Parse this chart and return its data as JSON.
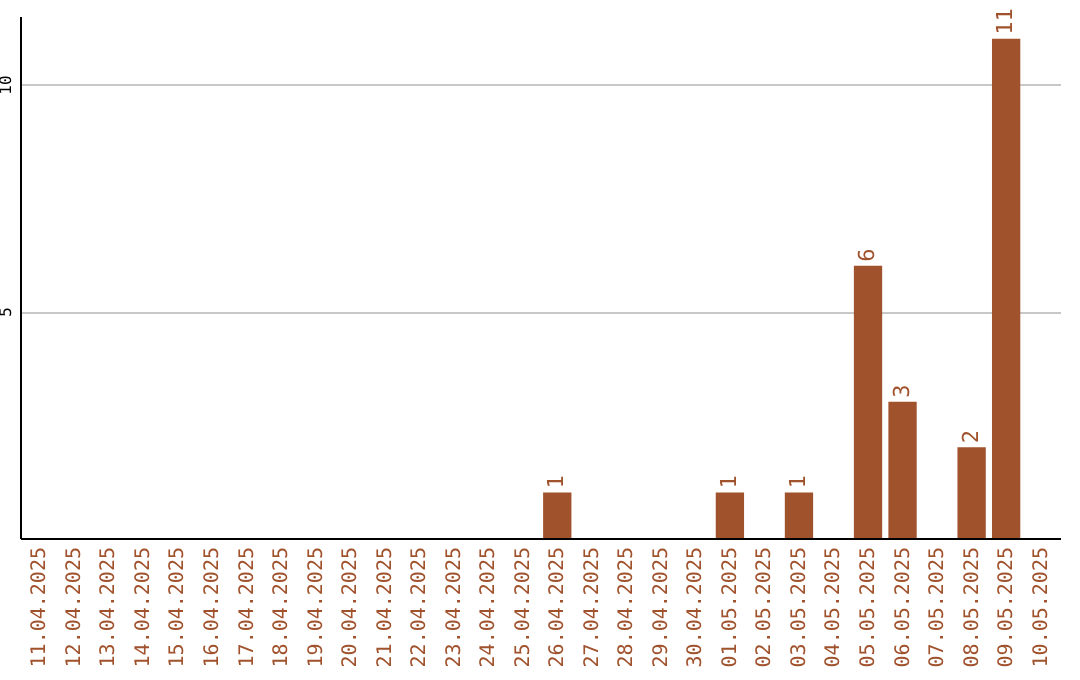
{
  "chart_data": {
    "type": "bar",
    "categories": [
      "11.04.2025",
      "12.04.2025",
      "13.04.2025",
      "14.04.2025",
      "15.04.2025",
      "16.04.2025",
      "17.04.2025",
      "18.04.2025",
      "19.04.2025",
      "20.04.2025",
      "21.04.2025",
      "22.04.2025",
      "23.04.2025",
      "24.04.2025",
      "25.04.2025",
      "26.04.2025",
      "27.04.2025",
      "28.04.2025",
      "29.04.2025",
      "30.04.2025",
      "01.05.2025",
      "02.05.2025",
      "03.05.2025",
      "04.05.2025",
      "05.05.2025",
      "06.05.2025",
      "07.05.2025",
      "08.05.2025",
      "09.05.2025",
      "10.05.2025"
    ],
    "values": [
      0,
      0,
      0,
      0,
      0,
      0,
      0,
      0,
      0,
      0,
      0,
      0,
      0,
      0,
      0,
      1,
      0,
      0,
      0,
      0,
      1,
      0,
      1,
      0,
      6,
      3,
      0,
      2,
      11,
      0
    ],
    "value_labels": [
      null,
      null,
      null,
      null,
      null,
      null,
      null,
      null,
      null,
      null,
      null,
      null,
      null,
      null,
      null,
      "1",
      null,
      null,
      null,
      null,
      "1",
      null,
      "1",
      null,
      "6",
      "3",
      null,
      "2",
      "11",
      null
    ],
    "color": "#a0522d",
    "ylim": [
      0,
      11.5
    ],
    "yticks": [
      5,
      10
    ],
    "grid": "y"
  }
}
